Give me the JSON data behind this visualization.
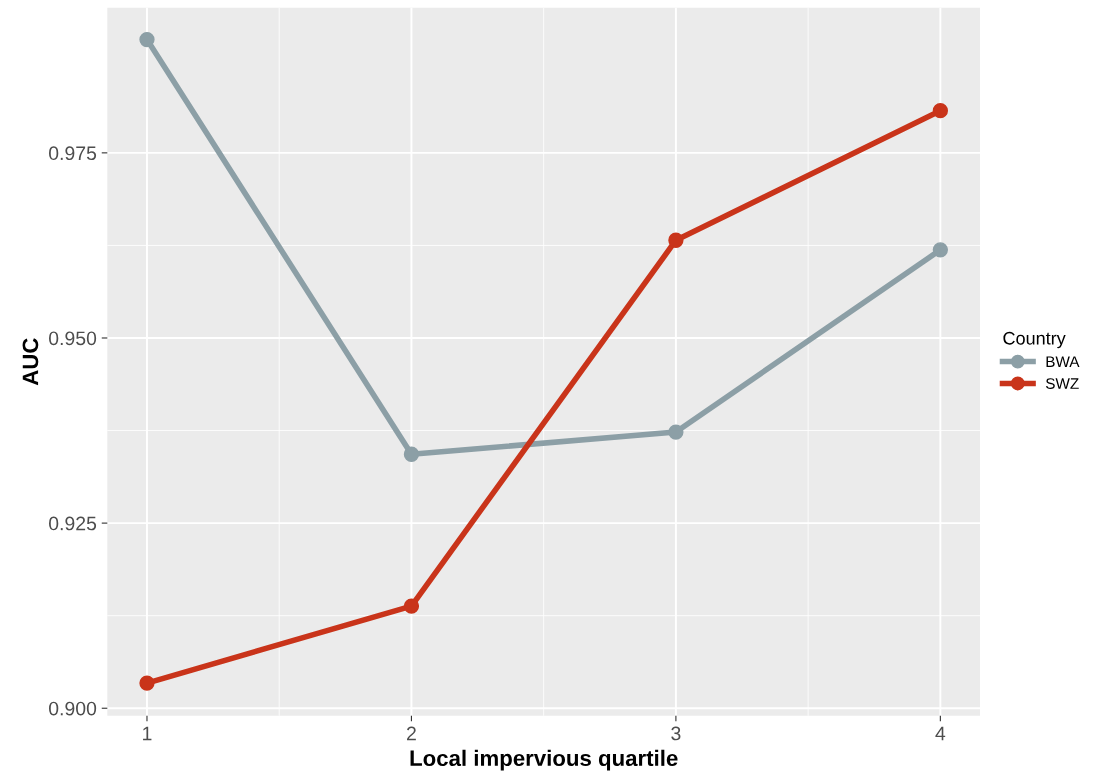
{
  "chart_data": {
    "type": "line",
    "xlabel": "Local impervious quartile",
    "ylabel": "AUC",
    "legend_title": "Country",
    "x": [
      1,
      2,
      3,
      4
    ],
    "series": [
      {
        "name": "BWA",
        "color": "#8c9fa6",
        "values": [
          0.9903,
          0.9343,
          0.9373,
          0.9619
        ]
      },
      {
        "name": "SWZ",
        "color": "#c9341a",
        "values": [
          0.9034,
          0.9138,
          0.9632,
          0.9807
        ]
      }
    ],
    "xlim": [
      0.85,
      4.15
    ],
    "xticks": [
      1,
      2,
      3,
      4
    ],
    "ylim": [
      0.899,
      0.9946
    ],
    "yticks": [
      {
        "value": 0.9,
        "label": "0.900"
      },
      {
        "value": 0.925,
        "label": "0.925"
      },
      {
        "value": 0.95,
        "label": "0.950"
      },
      {
        "value": 0.975,
        "label": "0.975"
      }
    ],
    "grid": true,
    "legend": "right",
    "marker": "circle",
    "line_style": "solid"
  }
}
